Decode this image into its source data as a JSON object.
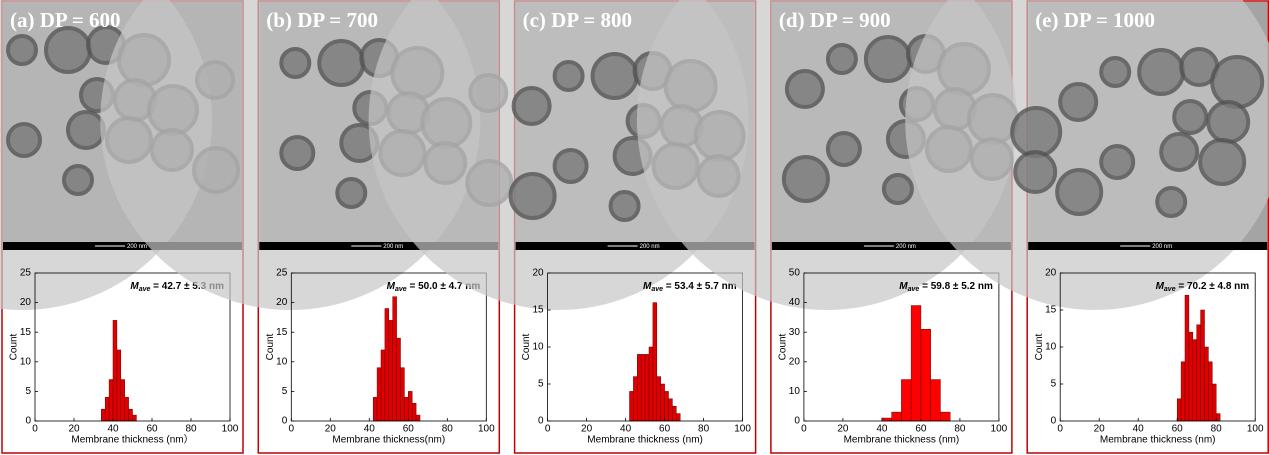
{
  "chart_data": [
    {
      "type": "histogram",
      "title": "(a) DP = 600",
      "scale_bar": "200 nm",
      "annotation": {
        "symbol": "M",
        "subscript": "ave",
        "text": " = 42.7 ± 5.3 nm"
      },
      "xlabel": "Membrane thickness (nm）",
      "ylabel": "Count",
      "color": "#e00000",
      "bins": [
        34,
        36,
        38,
        40,
        42,
        44,
        46,
        48,
        50,
        52
      ],
      "counts": [
        2,
        4,
        7,
        17,
        12,
        7,
        4,
        2,
        1
      ],
      "xlim": [
        0,
        100
      ],
      "xticks": [
        0,
        20,
        40,
        60,
        80,
        100
      ],
      "ylim": [
        0,
        25
      ],
      "yticks": [
        0,
        5,
        10,
        15,
        20,
        25
      ]
    },
    {
      "type": "histogram",
      "title": "(b) DP = 700",
      "scale_bar": "200 nm",
      "annotation": {
        "symbol": "M",
        "subscript": "ave",
        "text": " = 50.0 ± 4.7 nm"
      },
      "xlabel": "Membrane thickness(nm)",
      "ylabel": "Count",
      "color": "#e00000",
      "bins": [
        42,
        44,
        46,
        48,
        50,
        52,
        54,
        56,
        58,
        60,
        62,
        64,
        66
      ],
      "counts": [
        4,
        9,
        12,
        19,
        17,
        21,
        14,
        9,
        4,
        5,
        3,
        1
      ],
      "xlim": [
        0,
        100
      ],
      "xticks": [
        0,
        20,
        40,
        60,
        80,
        100
      ],
      "ylim": [
        0,
        25
      ],
      "yticks": [
        0,
        5,
        10,
        15,
        20,
        25
      ]
    },
    {
      "type": "histogram",
      "title": "(c) DP = 800",
      "scale_bar": "200 nm",
      "annotation": {
        "symbol": "M",
        "subscript": "ave",
        "text": " = 53.4 ± 5.7 nm"
      },
      "xlabel": "Membrane thickness (nm)",
      "ylabel": "Count",
      "color": "#e00000",
      "bins": [
        42,
        44,
        46,
        48,
        50,
        52,
        54,
        56,
        58,
        60,
        62,
        64,
        66,
        68
      ],
      "counts": [
        4,
        6,
        9,
        9,
        9,
        10,
        16,
        6,
        5,
        4,
        3,
        2,
        1
      ],
      "xlim": [
        0,
        100
      ],
      "xticks": [
        0,
        20,
        40,
        60,
        80,
        100
      ],
      "ylim": [
        0,
        20
      ],
      "yticks": [
        0,
        5,
        10,
        15,
        20
      ]
    },
    {
      "type": "histogram",
      "title": "(d) DP = 900",
      "scale_bar": "200 nm",
      "annotation": {
        "symbol": "M",
        "subscript": "ave",
        "text": " = 59.8 ± 5.2 nm"
      },
      "xlabel": "Membrane thickness (nm)",
      "ylabel": "Count",
      "color": "#ff0000",
      "bins": [
        40,
        45,
        50,
        55,
        60,
        65,
        70,
        75
      ],
      "counts": [
        1,
        3,
        14,
        39,
        31,
        14,
        3
      ],
      "xlim": [
        0,
        100
      ],
      "xticks": [
        0,
        20,
        40,
        60,
        80,
        100
      ],
      "ylim": [
        0,
        50
      ],
      "yticks": [
        0,
        10,
        20,
        30,
        40,
        50
      ]
    },
    {
      "type": "histogram",
      "title": "(e) DP = 1000",
      "scale_bar": "200 nm",
      "annotation": {
        "symbol": "M",
        "subscript": "ave",
        "text": " = 70.2 ± 4.8 nm"
      },
      "xlabel": "Membrane thickness (nm)",
      "ylabel": "Count",
      "color": "#e00000",
      "bins": [
        60,
        62,
        64,
        66,
        68,
        70,
        72,
        74,
        76,
        78,
        80,
        82
      ],
      "counts": [
        3,
        8,
        17,
        12,
        11,
        13,
        15,
        10,
        8,
        5,
        1
      ],
      "xlim": [
        0,
        100
      ],
      "xticks": [
        0,
        20,
        40,
        60,
        80,
        100
      ],
      "ylim": [
        0,
        20
      ],
      "yticks": [
        0,
        5,
        10,
        15,
        20
      ]
    }
  ]
}
